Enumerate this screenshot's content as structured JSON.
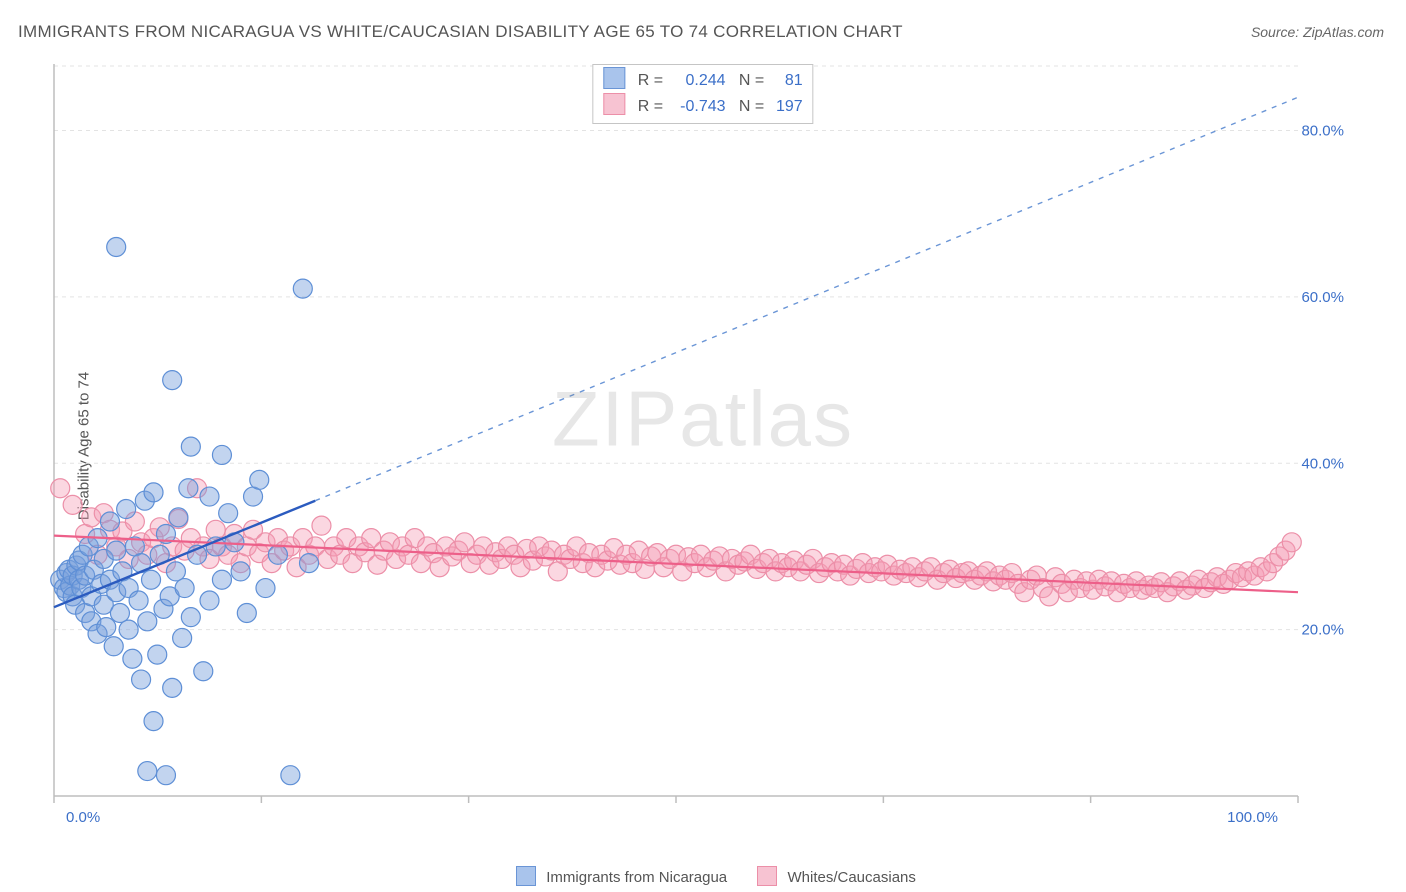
{
  "title": "IMMIGRANTS FROM NICARAGUA VS WHITE/CAUCASIAN DISABILITY AGE 65 TO 74 CORRELATION CHART",
  "source": "Source: ZipAtlas.com",
  "ylabel": "Disability Age 65 to 74",
  "watermark_bold": "ZIP",
  "watermark_thin": "atlas",
  "chart": {
    "type": "scatter",
    "background_color": "#ffffff",
    "grid_color": "#e3e3e3",
    "grid_dash": "4 4",
    "axis_color": "#bdbdbd",
    "xlim": [
      0,
      100
    ],
    "ylim": [
      0,
      88
    ],
    "yticks": [
      20,
      40,
      60,
      80
    ],
    "ytick_labels": [
      "20.0%",
      "40.0%",
      "60.0%",
      "80.0%"
    ],
    "xtick_positions": [
      0,
      16.67,
      33.33,
      50,
      66.67,
      83.33,
      100
    ],
    "xtick_labels_shown": {
      "0": "0.0%",
      "100": "100.0%"
    },
    "tick_label_color": "#3b6fc8",
    "tick_fontsize": 15,
    "marker_radius": 9.5,
    "marker_stroke_width": 1.2,
    "series": [
      {
        "name": "Immigrants from Nicaragua",
        "fill": "rgba(120,160,220,0.45)",
        "stroke": "#5e8fd6",
        "swatch_fill": "#a9c4ec",
        "swatch_border": "#6a95d6",
        "R": "0.244",
        "N": "81",
        "trend": {
          "x1": 0,
          "y1": 22.7,
          "x2": 21,
          "y2": 35.5,
          "color": "#2b5bbf",
          "width": 2.4,
          "dash": "none"
        },
        "trend_ext": {
          "x1": 21,
          "y1": 35.5,
          "x2": 100,
          "y2": 84,
          "color": "#6a95d6",
          "width": 1.4,
          "dash": "5 6"
        },
        "points": [
          [
            0.5,
            26
          ],
          [
            0.8,
            25
          ],
          [
            1.0,
            24.5
          ],
          [
            1.0,
            26.8
          ],
          [
            1.2,
            27.2
          ],
          [
            1.3,
            25.3
          ],
          [
            1.5,
            26.5
          ],
          [
            1.5,
            24
          ],
          [
            1.7,
            23
          ],
          [
            1.8,
            27.7
          ],
          [
            2.0,
            26
          ],
          [
            2.0,
            28.3
          ],
          [
            2.2,
            25
          ],
          [
            2.3,
            29
          ],
          [
            2.5,
            22
          ],
          [
            2.5,
            26.5
          ],
          [
            2.8,
            30
          ],
          [
            3.0,
            24
          ],
          [
            3.0,
            21
          ],
          [
            3.2,
            27.2
          ],
          [
            3.5,
            19.5
          ],
          [
            3.5,
            31
          ],
          [
            3.8,
            25.5
          ],
          [
            4.0,
            23
          ],
          [
            4.0,
            28.5
          ],
          [
            4.2,
            20.3
          ],
          [
            4.5,
            26
          ],
          [
            4.5,
            33
          ],
          [
            4.8,
            18
          ],
          [
            5.0,
            24.5
          ],
          [
            5.0,
            29.5
          ],
          [
            5.3,
            22
          ],
          [
            5.5,
            27
          ],
          [
            5.8,
            34.5
          ],
          [
            6.0,
            20
          ],
          [
            6.0,
            25
          ],
          [
            6.3,
            16.5
          ],
          [
            6.5,
            30
          ],
          [
            6.8,
            23.5
          ],
          [
            7.0,
            28
          ],
          [
            7.0,
            14
          ],
          [
            7.3,
            35.5
          ],
          [
            7.5,
            21
          ],
          [
            7.8,
            26
          ],
          [
            8.0,
            36.5
          ],
          [
            8.3,
            17
          ],
          [
            8.5,
            29
          ],
          [
            8.8,
            22.5
          ],
          [
            9.0,
            31.5
          ],
          [
            9.3,
            24
          ],
          [
            9.5,
            13
          ],
          [
            9.8,
            27
          ],
          [
            10.0,
            33.5
          ],
          [
            10.3,
            19
          ],
          [
            10.5,
            25
          ],
          [
            10.8,
            37
          ],
          [
            11.0,
            21.5
          ],
          [
            11.5,
            29
          ],
          [
            12.0,
            15
          ],
          [
            12.5,
            23.5
          ],
          [
            13.0,
            30
          ],
          [
            13.5,
            26
          ],
          [
            14.0,
            34
          ],
          [
            5.0,
            66
          ],
          [
            7.5,
            3
          ],
          [
            8.0,
            9
          ],
          [
            9.0,
            2.5
          ],
          [
            15.0,
            27
          ],
          [
            15.5,
            22
          ],
          [
            16.0,
            36
          ],
          [
            17.0,
            25
          ],
          [
            18.0,
            29
          ],
          [
            19.0,
            2.5
          ],
          [
            20.0,
            61
          ],
          [
            20.5,
            28
          ],
          [
            9.5,
            50
          ],
          [
            11.0,
            42
          ],
          [
            13.5,
            41
          ],
          [
            16.5,
            38
          ],
          [
            12.5,
            36
          ],
          [
            14.5,
            30.5
          ]
        ]
      },
      {
        "name": "Whites/Caucasians",
        "fill": "rgba(245,155,180,0.40)",
        "stroke": "#ec8fa8",
        "swatch_fill": "#f7c3d2",
        "swatch_border": "#ec8fa8",
        "R": "-0.743",
        "N": "197",
        "trend": {
          "x1": 0,
          "y1": 31.3,
          "x2": 100,
          "y2": 24.5,
          "color": "#ed5f89",
          "width": 2.2,
          "dash": "none"
        },
        "points": [
          [
            0.5,
            37
          ],
          [
            1.5,
            35
          ],
          [
            2.5,
            31.5
          ],
          [
            3.0,
            33.5
          ],
          [
            3.5,
            29
          ],
          [
            4.0,
            34
          ],
          [
            4.5,
            32
          ],
          [
            5.0,
            30
          ],
          [
            5.5,
            31.8
          ],
          [
            6.0,
            28.5
          ],
          [
            6.5,
            33
          ],
          [
            7.0,
            30.5
          ],
          [
            7.5,
            29
          ],
          [
            8.0,
            31
          ],
          [
            8.5,
            32.3
          ],
          [
            9.0,
            28
          ],
          [
            9.5,
            30
          ],
          [
            10.0,
            33.3
          ],
          [
            10.5,
            29.5
          ],
          [
            11.0,
            31
          ],
          [
            11.5,
            37
          ],
          [
            12.0,
            30
          ],
          [
            12.5,
            28.5
          ],
          [
            13.0,
            32
          ],
          [
            13.5,
            30
          ],
          [
            14.0,
            29
          ],
          [
            14.5,
            31.5
          ],
          [
            15.0,
            28
          ],
          [
            15.5,
            30
          ],
          [
            16.0,
            32
          ],
          [
            16.5,
            29.2
          ],
          [
            17.0,
            30.5
          ],
          [
            17.5,
            28
          ],
          [
            18.0,
            31
          ],
          [
            18.5,
            29.5
          ],
          [
            19.0,
            30
          ],
          [
            19.5,
            27.5
          ],
          [
            20.0,
            31
          ],
          [
            20.5,
            29
          ],
          [
            21.0,
            30
          ],
          [
            21.5,
            32.5
          ],
          [
            22.0,
            28.5
          ],
          [
            22.5,
            30
          ],
          [
            23.0,
            29
          ],
          [
            23.5,
            31
          ],
          [
            24.0,
            28
          ],
          [
            24.5,
            30
          ],
          [
            25.0,
            29.3
          ],
          [
            25.5,
            31
          ],
          [
            26.0,
            27.8
          ],
          [
            26.5,
            29.5
          ],
          [
            27.0,
            30.5
          ],
          [
            27.5,
            28.5
          ],
          [
            28.0,
            30
          ],
          [
            28.5,
            29
          ],
          [
            29.0,
            31
          ],
          [
            29.5,
            28
          ],
          [
            30.0,
            30
          ],
          [
            30.5,
            29.2
          ],
          [
            31.0,
            27.5
          ],
          [
            31.5,
            30
          ],
          [
            32.0,
            28.8
          ],
          [
            32.5,
            29.5
          ],
          [
            33.0,
            30.5
          ],
          [
            33.5,
            28
          ],
          [
            34.0,
            29
          ],
          [
            34.5,
            30
          ],
          [
            35.0,
            27.8
          ],
          [
            35.5,
            29.3
          ],
          [
            36.0,
            28.5
          ],
          [
            36.5,
            30
          ],
          [
            37.0,
            29
          ],
          [
            37.5,
            27.5
          ],
          [
            38.0,
            29.7
          ],
          [
            38.5,
            28.3
          ],
          [
            39.0,
            30
          ],
          [
            39.5,
            28.8
          ],
          [
            40.0,
            29.5
          ],
          [
            40.5,
            27
          ],
          [
            41.0,
            29
          ],
          [
            41.5,
            28.5
          ],
          [
            42.0,
            30
          ],
          [
            42.5,
            28
          ],
          [
            43.0,
            29.2
          ],
          [
            43.5,
            27.5
          ],
          [
            44.0,
            29
          ],
          [
            44.5,
            28.3
          ],
          [
            45.0,
            29.8
          ],
          [
            45.5,
            27.8
          ],
          [
            46.0,
            29
          ],
          [
            46.5,
            28
          ],
          [
            47.0,
            29.5
          ],
          [
            47.5,
            27.3
          ],
          [
            48.0,
            28.8
          ],
          [
            48.5,
            29.2
          ],
          [
            49.0,
            27.5
          ],
          [
            49.5,
            28.5
          ],
          [
            50.0,
            29
          ],
          [
            50.5,
            27
          ],
          [
            51.0,
            28.7
          ],
          [
            51.5,
            28
          ],
          [
            52.0,
            29
          ],
          [
            52.5,
            27.5
          ],
          [
            53.0,
            28.3
          ],
          [
            53.5,
            28.8
          ],
          [
            54.0,
            27
          ],
          [
            54.5,
            28.5
          ],
          [
            55.0,
            27.8
          ],
          [
            55.5,
            28.2
          ],
          [
            56.0,
            29
          ],
          [
            56.5,
            27.3
          ],
          [
            57.0,
            28
          ],
          [
            57.5,
            28.5
          ],
          [
            58.0,
            27
          ],
          [
            58.5,
            28
          ],
          [
            59.0,
            27.5
          ],
          [
            59.5,
            28.3
          ],
          [
            60.0,
            27
          ],
          [
            60.5,
            27.8
          ],
          [
            61.0,
            28.5
          ],
          [
            61.5,
            26.8
          ],
          [
            62.0,
            27.5
          ],
          [
            62.5,
            28
          ],
          [
            63.0,
            27
          ],
          [
            63.5,
            27.8
          ],
          [
            64.0,
            26.5
          ],
          [
            64.5,
            27.3
          ],
          [
            65.0,
            28
          ],
          [
            65.5,
            26.8
          ],
          [
            66.0,
            27.5
          ],
          [
            66.5,
            27
          ],
          [
            67.0,
            27.8
          ],
          [
            67.5,
            26.5
          ],
          [
            68.0,
            27.2
          ],
          [
            68.5,
            26.8
          ],
          [
            69.0,
            27.5
          ],
          [
            69.5,
            26.3
          ],
          [
            70.0,
            27
          ],
          [
            70.5,
            27.5
          ],
          [
            71.0,
            26
          ],
          [
            71.5,
            26.8
          ],
          [
            72.0,
            27.2
          ],
          [
            72.5,
            26.2
          ],
          [
            73.0,
            26.8
          ],
          [
            73.5,
            27
          ],
          [
            74.0,
            26
          ],
          [
            74.5,
            26.5
          ],
          [
            75.0,
            27
          ],
          [
            75.5,
            25.8
          ],
          [
            76.0,
            26.5
          ],
          [
            76.5,
            26
          ],
          [
            77.0,
            26.8
          ],
          [
            77.5,
            25.5
          ],
          [
            78.0,
            24.5
          ],
          [
            78.5,
            26
          ],
          [
            79.0,
            26.5
          ],
          [
            79.5,
            25
          ],
          [
            80.0,
            24
          ],
          [
            80.5,
            26.3
          ],
          [
            81.0,
            25.5
          ],
          [
            81.5,
            24.5
          ],
          [
            82.0,
            26
          ],
          [
            82.5,
            25
          ],
          [
            83.0,
            25.8
          ],
          [
            83.5,
            24.8
          ],
          [
            84.0,
            26
          ],
          [
            84.5,
            25.2
          ],
          [
            85.0,
            25.8
          ],
          [
            85.5,
            24.5
          ],
          [
            86.0,
            25.5
          ],
          [
            86.5,
            25
          ],
          [
            87.0,
            25.8
          ],
          [
            87.5,
            24.8
          ],
          [
            88.0,
            25.3
          ],
          [
            88.5,
            25
          ],
          [
            89.0,
            25.7
          ],
          [
            89.5,
            24.5
          ],
          [
            90.0,
            25.2
          ],
          [
            90.5,
            25.8
          ],
          [
            91.0,
            24.8
          ],
          [
            91.5,
            25.3
          ],
          [
            92.0,
            26
          ],
          [
            92.5,
            25
          ],
          [
            93.0,
            25.7
          ],
          [
            93.5,
            26.3
          ],
          [
            94.0,
            25.5
          ],
          [
            94.5,
            26
          ],
          [
            95.0,
            26.8
          ],
          [
            95.5,
            26.3
          ],
          [
            96.0,
            27
          ],
          [
            96.5,
            26.5
          ],
          [
            97.0,
            27.5
          ],
          [
            97.5,
            27
          ],
          [
            98.0,
            28
          ],
          [
            98.5,
            28.8
          ],
          [
            99.0,
            29.5
          ],
          [
            99.5,
            30.5
          ]
        ]
      }
    ]
  },
  "bottom_legend": [
    {
      "label": "Immigrants from Nicaragua",
      "fill": "#a9c4ec",
      "border": "#6a95d6"
    },
    {
      "label": "Whites/Caucasians",
      "fill": "#f7c3d2",
      "border": "#ec8fa8"
    }
  ]
}
